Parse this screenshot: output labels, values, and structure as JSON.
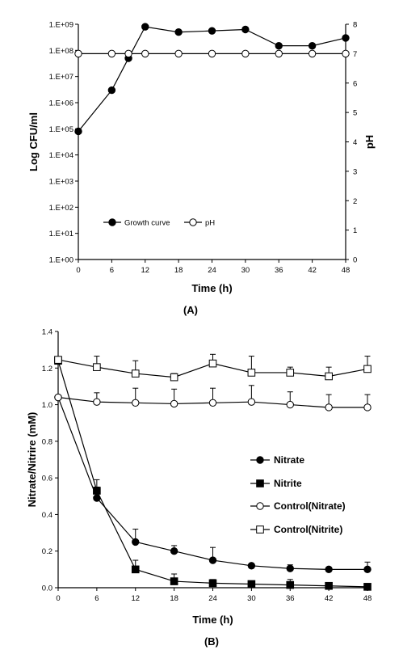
{
  "chart_data": [
    {
      "panel_label": "(A)",
      "type": "line",
      "xlabel": "Time (h)",
      "ylabel": "Log CFU/ml",
      "y2label": "pH",
      "x_ticks": [
        "0",
        "6",
        "12",
        "18",
        "24",
        "30",
        "36",
        "42",
        "48"
      ],
      "xlim": [
        0,
        48
      ],
      "y_ticks": [
        "1.E+00",
        "1.E+01",
        "1.E+02",
        "1.E+03",
        "1.E+04",
        "1.E+05",
        "1.E+06",
        "1.E+07",
        "1.E+08",
        "1.E+09"
      ],
      "y_scale": "log",
      "ylim": [
        1,
        1000000000
      ],
      "y2_ticks": [
        "0",
        "1",
        "2",
        "3",
        "4",
        "5",
        "6",
        "7",
        "8"
      ],
      "y2lim": [
        0,
        8
      ],
      "legend_position": "bottom-left",
      "series": [
        {
          "name": "Growth curve",
          "marker": "filled-circle",
          "axis": "left",
          "x": [
            0,
            6,
            9,
            12,
            18,
            24,
            30,
            36,
            42,
            48
          ],
          "y": [
            80000,
            3000000,
            50000000,
            800000000,
            500000000,
            560000000,
            630000000,
            150000000,
            150000000,
            300000000
          ]
        },
        {
          "name": "pH",
          "marker": "open-circle",
          "axis": "right",
          "x": [
            0,
            6,
            9,
            12,
            18,
            24,
            30,
            36,
            42,
            48
          ],
          "y": [
            7,
            7,
            7,
            7,
            7,
            7,
            7,
            7,
            7,
            7
          ]
        }
      ]
    },
    {
      "panel_label": "(B)",
      "type": "line",
      "xlabel": "Time (h)",
      "ylabel": "Nitrate/Nitrire (mM)",
      "x_ticks": [
        "0",
        "6",
        "12",
        "18",
        "24",
        "30",
        "36",
        "42",
        "48"
      ],
      "xlim": [
        0,
        48
      ],
      "y_ticks": [
        "0.0",
        "0.2",
        "0.4",
        "0.6",
        "0.8",
        "1.0",
        "1.2",
        "1.4"
      ],
      "ylim": [
        0,
        1.4
      ],
      "legend_position": "right",
      "series": [
        {
          "name": "Nitrate",
          "marker": "filled-circle",
          "x": [
            0,
            6,
            12,
            18,
            24,
            30,
            36,
            42,
            48
          ],
          "y": [
            1.04,
            0.49,
            0.25,
            0.2,
            0.15,
            0.12,
            0.105,
            0.1,
            0.1
          ],
          "error": [
            0,
            0.06,
            0.07,
            0.03,
            0.07,
            0,
            0.02,
            0,
            0.04
          ]
        },
        {
          "name": "Nitrite",
          "marker": "filled-square",
          "x": [
            0,
            6,
            12,
            18,
            24,
            30,
            36,
            42,
            48
          ],
          "y": [
            1.24,
            0.53,
            0.1,
            0.035,
            0.025,
            0.02,
            0.015,
            0.01,
            0.005
          ],
          "error": [
            0,
            0.06,
            0.05,
            0.04,
            0.02,
            0,
            0.03,
            0.01,
            0
          ]
        },
        {
          "name": "Control(Nitrate)",
          "marker": "open-circle",
          "x": [
            0,
            6,
            12,
            18,
            24,
            30,
            36,
            42,
            48
          ],
          "y": [
            1.04,
            1.015,
            1.01,
            1.005,
            1.01,
            1.015,
            1.0,
            0.985,
            0.985
          ],
          "error": [
            0,
            0.05,
            0.08,
            0.08,
            0.08,
            0.09,
            0.07,
            0.07,
            0.07
          ]
        },
        {
          "name": "Control(Nitrite)",
          "marker": "open-square",
          "x": [
            0,
            6,
            12,
            18,
            24,
            30,
            36,
            42,
            48
          ],
          "y": [
            1.245,
            1.205,
            1.17,
            1.15,
            1.225,
            1.175,
            1.175,
            1.155,
            1.195
          ],
          "error": [
            0,
            0.06,
            0.07,
            0.02,
            0.05,
            0.09,
            0.03,
            0.05,
            0.07
          ]
        }
      ]
    }
  ]
}
